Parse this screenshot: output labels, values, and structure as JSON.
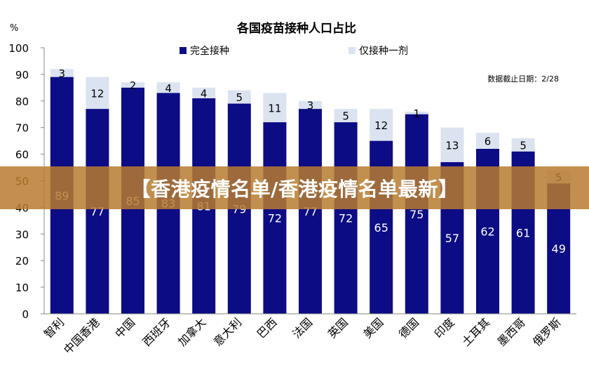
{
  "chart_data": {
    "type": "bar",
    "stacked": true,
    "title": "各国疫苗接种人口占比",
    "ylabel": "%",
    "ylim": [
      0,
      100
    ],
    "yticks": [
      0,
      10,
      20,
      30,
      40,
      50,
      60,
      70,
      80,
      90,
      100
    ],
    "grid": false,
    "legend_position": "top",
    "note": "数据截止日期：2/28",
    "categories": [
      "智利",
      "中国香港",
      "中国",
      "西班牙",
      "加拿大",
      "意大利",
      "巴西",
      "法国",
      "英国",
      "美国",
      "德国",
      "印度",
      "土耳其",
      "墨西哥",
      "俄罗斯"
    ],
    "series": [
      {
        "name": "完全接种",
        "color": "#0c0c84",
        "values": [
          89,
          77,
          85,
          83,
          81,
          79,
          72,
          77,
          72,
          65,
          75,
          57,
          62,
          61,
          49
        ],
        "labels": [
          "89",
          "77",
          "85",
          "83",
          "81",
          "79",
          "72",
          "77",
          "72",
          "65",
          "75",
          "57",
          "62",
          "61",
          "49"
        ]
      },
      {
        "name": "仅接种一剂",
        "color": "#dbe3f1",
        "values": [
          3,
          12,
          2,
          4,
          4,
          5,
          11,
          3,
          5,
          12,
          1,
          13,
          6,
          5,
          5
        ],
        "labels": [
          "3",
          "12",
          "2",
          "4",
          "4",
          "5",
          "11",
          "3",
          "5",
          "12",
          "1",
          "13",
          "6",
          "5",
          "5"
        ]
      }
    ]
  },
  "banner": {
    "text": "【香港疫情名单/香港疫情名单最新】"
  }
}
